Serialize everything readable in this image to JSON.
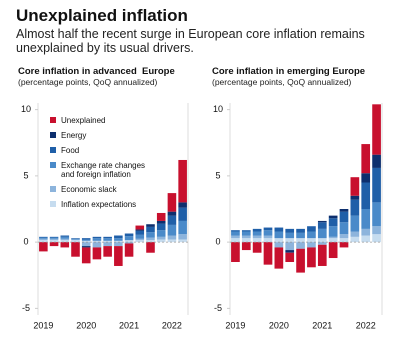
{
  "title": "Unexplained inflation",
  "subtitle": "Almost half the recent surge in European core inflation remains unexplained by its usual drivers.",
  "chart_data": [
    {
      "type": "bar",
      "stacked": true,
      "title": "Core inflation in advanced  Europe",
      "subtitle": "(percentage points, QoQ annualized)",
      "categories": [
        "2019",
        null,
        null,
        null,
        "2020",
        null,
        null,
        null,
        "2021",
        null,
        null,
        null,
        "2022",
        null
      ],
      "ylim": [
        -5.5,
        10.5
      ],
      "yticks": [
        10,
        5,
        0,
        -5
      ],
      "legend": "upper left",
      "series": [
        {
          "name": "Unexplained",
          "color": "#c8102e",
          "values": [
            -0.7,
            -0.3,
            -0.4,
            -1.1,
            -1.2,
            -0.9,
            -0.8,
            -1.5,
            -1.0,
            0.3,
            -0.8,
            0.6,
            1.4,
            3.2
          ]
        },
        {
          "name": "Energy",
          "color": "#0d2f6e",
          "values": [
            0,
            0,
            0,
            0,
            -0.1,
            0,
            0,
            0,
            0,
            0.1,
            0.2,
            0.2,
            0.3,
            0.4
          ]
        },
        {
          "name": "Food",
          "color": "#1f5fa8",
          "values": [
            0.05,
            0.05,
            0.1,
            0.05,
            0.1,
            0.1,
            0.1,
            0.2,
            0.2,
            0.3,
            0.4,
            0.5,
            0.7,
            1.0
          ]
        },
        {
          "name": "Exchange rate changes and foreign inflation",
          "color": "#4a8ac9",
          "values": [
            0.1,
            0.1,
            0.15,
            0.05,
            0.1,
            0.2,
            0.2,
            0.2,
            0.3,
            0.3,
            0.4,
            0.5,
            0.8,
            1.0
          ]
        },
        {
          "name": "Economic slack",
          "color": "#8db4dc",
          "values": [
            0.1,
            0.1,
            0.1,
            0.05,
            -0.3,
            -0.4,
            -0.3,
            -0.3,
            -0.1,
            0.1,
            0.2,
            0.2,
            0.3,
            0.4
          ]
        },
        {
          "name": "Inflation expectations",
          "color": "#c6dcef",
          "values": [
            0.15,
            0.15,
            0.15,
            0.15,
            0.1,
            0.1,
            0.1,
            0.1,
            0.15,
            0.15,
            0.15,
            0.2,
            0.2,
            0.2
          ]
        }
      ]
    },
    {
      "type": "bar",
      "stacked": true,
      "title": "Core inflation in emerging Europe",
      "subtitle": "(percentage points, QoQ annualized)",
      "categories": [
        "2019",
        null,
        null,
        null,
        "2020",
        null,
        null,
        null,
        "2021",
        null,
        null,
        null,
        "2022",
        null
      ],
      "ylim": [
        -5.5,
        10.5
      ],
      "yticks": [
        10,
        5,
        0,
        -5
      ],
      "series": [
        {
          "color": "#c8102e",
          "values": [
            -1.5,
            -0.6,
            -0.8,
            -1.7,
            -1.6,
            -0.7,
            -1.8,
            -1.5,
            -1.6,
            -1.2,
            -0.4,
            1.4,
            2.2,
            3.8
          ]
        },
        {
          "color": "#0d2f6e",
          "values": [
            0,
            0,
            0,
            0,
            0,
            -0.2,
            0,
            0,
            0.1,
            0.2,
            0.2,
            0.3,
            0.7,
            1.0
          ]
        },
        {
          "color": "#1f5fa8",
          "values": [
            0.1,
            0.1,
            0.2,
            0.2,
            0.3,
            0.3,
            0.3,
            0.4,
            0.5,
            0.6,
            0.8,
            1.2,
            2.0,
            2.6
          ]
        },
        {
          "color": "#4a8ac9",
          "values": [
            0.3,
            0.3,
            0.3,
            0.4,
            0.5,
            0.4,
            0.4,
            0.5,
            0.7,
            0.8,
            0.9,
            1.2,
            1.5,
            1.8
          ]
        },
        {
          "color": "#8db4dc",
          "values": [
            0.2,
            0.2,
            0.2,
            0.2,
            -0.4,
            -0.6,
            -0.5,
            -0.4,
            -0.2,
            0.1,
            0.3,
            0.4,
            0.5,
            0.6
          ]
        },
        {
          "color": "#c6dcef",
          "values": [
            0.3,
            0.3,
            0.3,
            0.3,
            0.3,
            0.3,
            0.3,
            0.3,
            0.3,
            0.3,
            0.3,
            0.4,
            0.5,
            0.6
          ]
        }
      ]
    }
  ]
}
